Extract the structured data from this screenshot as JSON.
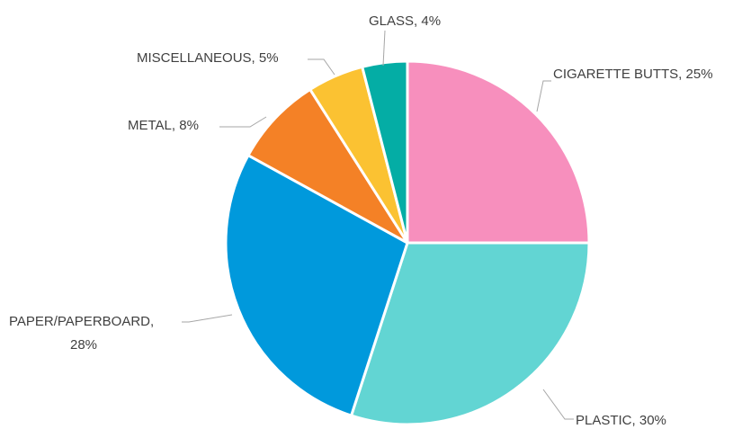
{
  "chart_data": {
    "type": "pie",
    "title": "",
    "slices": [
      {
        "label": "CIGARETTE BUTTS",
        "value": 25,
        "display": "CIGARETTE BUTTS, 25%",
        "color": "#f78fbd"
      },
      {
        "label": "PLASTIC",
        "value": 30,
        "display": "PLASTIC, 30%",
        "color": "#62d5d3"
      },
      {
        "label": "PAPER/PAPERBOARD",
        "value": 28,
        "display_lines": [
          "PAPER/PAPERBOARD,",
          "28%"
        ],
        "color": "#0099dc"
      },
      {
        "label": "METAL",
        "value": 8,
        "display": "METAL, 8%",
        "color": "#f48126"
      },
      {
        "label": "MISCELLANEOUS",
        "value": 5,
        "display": "MISCELLANEOUS, 5%",
        "color": "#fbc232"
      },
      {
        "label": "GLASS",
        "value": 4,
        "display": "GLASS, 4%",
        "color": "#04ada5"
      }
    ],
    "legend": "none",
    "data_labels": "outside-with-leader-lines"
  }
}
